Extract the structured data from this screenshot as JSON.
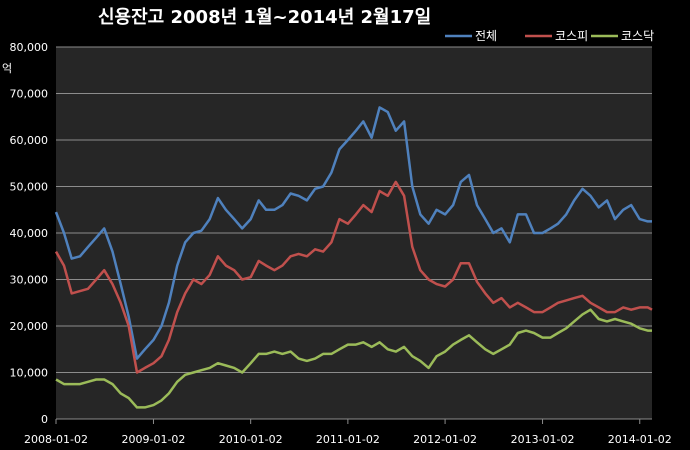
{
  "chart_data": {
    "type": "line",
    "title": "신용잔고 2008년 1월~2014년 2월17일",
    "ylabel": "억",
    "ylim": [
      0,
      80000
    ],
    "yticks": [
      "0",
      "10,000",
      "20,000",
      "30,000",
      "40,000",
      "50,000",
      "60,000",
      "70,000",
      "80,000"
    ],
    "ytick_values": [
      0,
      10000,
      20000,
      30000,
      40000,
      50000,
      60000,
      70000,
      80000
    ],
    "xlim": [
      "2008-01-02",
      "2014-02-17"
    ],
    "xticks": [
      "2008-01-02",
      "2009-01-02",
      "2010-01-02",
      "2011-01-02",
      "2012-01-02",
      "2013-01-02",
      "2014-01-02"
    ],
    "grid": true,
    "legend_position": "top-right",
    "series": [
      {
        "name": "전체",
        "color": "#4f81bd",
        "points": [
          [
            "2008-01-02",
            44500
          ],
          [
            "2008-02-01",
            40000
          ],
          [
            "2008-03-01",
            34500
          ],
          [
            "2008-04-01",
            35000
          ],
          [
            "2008-05-01",
            37000
          ],
          [
            "2008-06-01",
            39000
          ],
          [
            "2008-07-01",
            41000
          ],
          [
            "2008-08-01",
            36000
          ],
          [
            "2008-09-01",
            29000
          ],
          [
            "2008-10-01",
            22000
          ],
          [
            "2008-11-01",
            13000
          ],
          [
            "2008-12-01",
            15000
          ],
          [
            "2009-01-02",
            17000
          ],
          [
            "2009-02-01",
            20000
          ],
          [
            "2009-03-01",
            25000
          ],
          [
            "2009-04-01",
            33000
          ],
          [
            "2009-05-01",
            38000
          ],
          [
            "2009-06-01",
            40000
          ],
          [
            "2009-07-01",
            40500
          ],
          [
            "2009-08-01",
            43000
          ],
          [
            "2009-09-01",
            47500
          ],
          [
            "2009-10-01",
            45000
          ],
          [
            "2009-11-01",
            43000
          ],
          [
            "2009-12-01",
            41000
          ],
          [
            "2010-01-02",
            43000
          ],
          [
            "2010-02-01",
            47000
          ],
          [
            "2010-03-01",
            45000
          ],
          [
            "2010-04-01",
            45000
          ],
          [
            "2010-05-01",
            46000
          ],
          [
            "2010-06-01",
            48500
          ],
          [
            "2010-07-01",
            48000
          ],
          [
            "2010-08-01",
            47000
          ],
          [
            "2010-09-01",
            49500
          ],
          [
            "2010-10-01",
            50000
          ],
          [
            "2010-11-01",
            53000
          ],
          [
            "2010-12-01",
            58000
          ],
          [
            "2011-01-02",
            60000
          ],
          [
            "2011-02-01",
            62000
          ],
          [
            "2011-03-01",
            64000
          ],
          [
            "2011-04-01",
            60500
          ],
          [
            "2011-05-01",
            67000
          ],
          [
            "2011-06-01",
            66000
          ],
          [
            "2011-07-01",
            62000
          ],
          [
            "2011-08-01",
            64000
          ],
          [
            "2011-09-01",
            50000
          ],
          [
            "2011-10-01",
            44000
          ],
          [
            "2011-11-01",
            42000
          ],
          [
            "2011-12-01",
            45000
          ],
          [
            "2012-01-02",
            44000
          ],
          [
            "2012-02-01",
            46000
          ],
          [
            "2012-03-01",
            51000
          ],
          [
            "2012-04-01",
            52500
          ],
          [
            "2012-05-01",
            46000
          ],
          [
            "2012-06-01",
            43000
          ],
          [
            "2012-07-01",
            40000
          ],
          [
            "2012-08-01",
            41000
          ],
          [
            "2012-09-01",
            38000
          ],
          [
            "2012-10-01",
            44000
          ],
          [
            "2012-11-01",
            44000
          ],
          [
            "2012-12-01",
            40000
          ],
          [
            "2013-01-02",
            40000
          ],
          [
            "2013-02-01",
            41000
          ],
          [
            "2013-03-01",
            42000
          ],
          [
            "2013-04-01",
            44000
          ],
          [
            "2013-05-01",
            47000
          ],
          [
            "2013-06-01",
            49500
          ],
          [
            "2013-07-01",
            48000
          ],
          [
            "2013-08-01",
            45500
          ],
          [
            "2013-09-01",
            47000
          ],
          [
            "2013-10-01",
            43000
          ],
          [
            "2013-11-01",
            45000
          ],
          [
            "2013-12-01",
            46000
          ],
          [
            "2014-01-02",
            43000
          ],
          [
            "2014-02-01",
            42500
          ],
          [
            "2014-02-17",
            42500
          ]
        ]
      },
      {
        "name": "코스피",
        "color": "#c0504d",
        "points": [
          [
            "2008-01-02",
            36000
          ],
          [
            "2008-02-01",
            33000
          ],
          [
            "2008-03-01",
            27000
          ],
          [
            "2008-04-01",
            27500
          ],
          [
            "2008-05-01",
            28000
          ],
          [
            "2008-06-01",
            30000
          ],
          [
            "2008-07-01",
            32000
          ],
          [
            "2008-08-01",
            29000
          ],
          [
            "2008-09-01",
            25000
          ],
          [
            "2008-10-01",
            20000
          ],
          [
            "2008-11-01",
            10000
          ],
          [
            "2008-12-01",
            11000
          ],
          [
            "2009-01-02",
            12000
          ],
          [
            "2009-02-01",
            13500
          ],
          [
            "2009-03-01",
            17000
          ],
          [
            "2009-04-01",
            23000
          ],
          [
            "2009-05-01",
            27000
          ],
          [
            "2009-06-01",
            30000
          ],
          [
            "2009-07-01",
            29000
          ],
          [
            "2009-08-01",
            31000
          ],
          [
            "2009-09-01",
            35000
          ],
          [
            "2009-10-01",
            33000
          ],
          [
            "2009-11-01",
            32000
          ],
          [
            "2009-12-01",
            30000
          ],
          [
            "2010-01-02",
            30500
          ],
          [
            "2010-02-01",
            34000
          ],
          [
            "2010-03-01",
            33000
          ],
          [
            "2010-04-01",
            32000
          ],
          [
            "2010-05-01",
            33000
          ],
          [
            "2010-06-01",
            35000
          ],
          [
            "2010-07-01",
            35500
          ],
          [
            "2010-08-01",
            35000
          ],
          [
            "2010-09-01",
            36500
          ],
          [
            "2010-10-01",
            36000
          ],
          [
            "2010-11-01",
            38000
          ],
          [
            "2010-12-01",
            43000
          ],
          [
            "2011-01-02",
            42000
          ],
          [
            "2011-02-01",
            44000
          ],
          [
            "2011-03-01",
            46000
          ],
          [
            "2011-04-01",
            44500
          ],
          [
            "2011-05-01",
            49000
          ],
          [
            "2011-06-01",
            48000
          ],
          [
            "2011-07-01",
            51000
          ],
          [
            "2011-08-01",
            48000
          ],
          [
            "2011-09-01",
            37000
          ],
          [
            "2011-10-01",
            32000
          ],
          [
            "2011-11-01",
            30000
          ],
          [
            "2011-12-01",
            29000
          ],
          [
            "2012-01-02",
            28500
          ],
          [
            "2012-02-01",
            30000
          ],
          [
            "2012-03-01",
            33500
          ],
          [
            "2012-04-01",
            33500
          ],
          [
            "2012-05-01",
            29500
          ],
          [
            "2012-06-01",
            27000
          ],
          [
            "2012-07-01",
            25000
          ],
          [
            "2012-08-01",
            26000
          ],
          [
            "2012-09-01",
            24000
          ],
          [
            "2012-10-01",
            25000
          ],
          [
            "2012-11-01",
            24000
          ],
          [
            "2012-12-01",
            23000
          ],
          [
            "2013-01-02",
            23000
          ],
          [
            "2013-02-01",
            24000
          ],
          [
            "2013-03-01",
            25000
          ],
          [
            "2013-04-01",
            25500
          ],
          [
            "2013-05-01",
            26000
          ],
          [
            "2013-06-01",
            26500
          ],
          [
            "2013-07-01",
            25000
          ],
          [
            "2013-08-01",
            24000
          ],
          [
            "2013-09-01",
            23000
          ],
          [
            "2013-10-01",
            23000
          ],
          [
            "2013-11-01",
            24000
          ],
          [
            "2013-12-01",
            23500
          ],
          [
            "2014-01-02",
            24000
          ],
          [
            "2014-02-01",
            24000
          ],
          [
            "2014-02-17",
            23500
          ]
        ]
      },
      {
        "name": "코스닥",
        "color": "#9bbb59",
        "points": [
          [
            "2008-01-02",
            8500
          ],
          [
            "2008-02-01",
            7500
          ],
          [
            "2008-03-01",
            7500
          ],
          [
            "2008-04-01",
            7500
          ],
          [
            "2008-05-01",
            8000
          ],
          [
            "2008-06-01",
            8500
          ],
          [
            "2008-07-01",
            8500
          ],
          [
            "2008-08-01",
            7500
          ],
          [
            "2008-09-01",
            5500
          ],
          [
            "2008-10-01",
            4500
          ],
          [
            "2008-11-01",
            2500
          ],
          [
            "2008-12-01",
            2500
          ],
          [
            "2009-01-02",
            3000
          ],
          [
            "2009-02-01",
            4000
          ],
          [
            "2009-03-01",
            5500
          ],
          [
            "2009-04-01",
            8000
          ],
          [
            "2009-05-01",
            9500
          ],
          [
            "2009-06-01",
            10000
          ],
          [
            "2009-07-01",
            10500
          ],
          [
            "2009-08-01",
            11000
          ],
          [
            "2009-09-01",
            12000
          ],
          [
            "2009-10-01",
            11500
          ],
          [
            "2009-11-01",
            11000
          ],
          [
            "2009-12-01",
            10000
          ],
          [
            "2010-01-02",
            12000
          ],
          [
            "2010-02-01",
            14000
          ],
          [
            "2010-03-01",
            14000
          ],
          [
            "2010-04-01",
            14500
          ],
          [
            "2010-05-01",
            14000
          ],
          [
            "2010-06-01",
            14500
          ],
          [
            "2010-07-01",
            13000
          ],
          [
            "2010-08-01",
            12500
          ],
          [
            "2010-09-01",
            13000
          ],
          [
            "2010-10-01",
            14000
          ],
          [
            "2010-11-01",
            14000
          ],
          [
            "2010-12-01",
            15000
          ],
          [
            "2011-01-02",
            16000
          ],
          [
            "2011-02-01",
            16000
          ],
          [
            "2011-03-01",
            16500
          ],
          [
            "2011-04-01",
            15500
          ],
          [
            "2011-05-01",
            16500
          ],
          [
            "2011-06-01",
            15000
          ],
          [
            "2011-07-01",
            14500
          ],
          [
            "2011-08-01",
            15500
          ],
          [
            "2011-09-01",
            13500
          ],
          [
            "2011-10-01",
            12500
          ],
          [
            "2011-11-01",
            11000
          ],
          [
            "2011-12-01",
            13500
          ],
          [
            "2012-01-02",
            14500
          ],
          [
            "2012-02-01",
            16000
          ],
          [
            "2012-03-01",
            17000
          ],
          [
            "2012-04-01",
            18000
          ],
          [
            "2012-05-01",
            16500
          ],
          [
            "2012-06-01",
            15000
          ],
          [
            "2012-07-01",
            14000
          ],
          [
            "2012-08-01",
            15000
          ],
          [
            "2012-09-01",
            16000
          ],
          [
            "2012-10-01",
            18500
          ],
          [
            "2012-11-01",
            19000
          ],
          [
            "2012-12-01",
            18500
          ],
          [
            "2013-01-02",
            17500
          ],
          [
            "2013-02-01",
            17500
          ],
          [
            "2013-03-01",
            18500
          ],
          [
            "2013-04-01",
            19500
          ],
          [
            "2013-05-01",
            21000
          ],
          [
            "2013-06-01",
            22500
          ],
          [
            "2013-07-01",
            23500
          ],
          [
            "2013-08-01",
            21500
          ],
          [
            "2013-09-01",
            21000
          ],
          [
            "2013-10-01",
            21500
          ],
          [
            "2013-11-01",
            21000
          ],
          [
            "2013-12-01",
            20500
          ],
          [
            "2014-01-02",
            19500
          ],
          [
            "2014-02-01",
            19000
          ],
          [
            "2014-02-17",
            19000
          ]
        ]
      }
    ]
  }
}
